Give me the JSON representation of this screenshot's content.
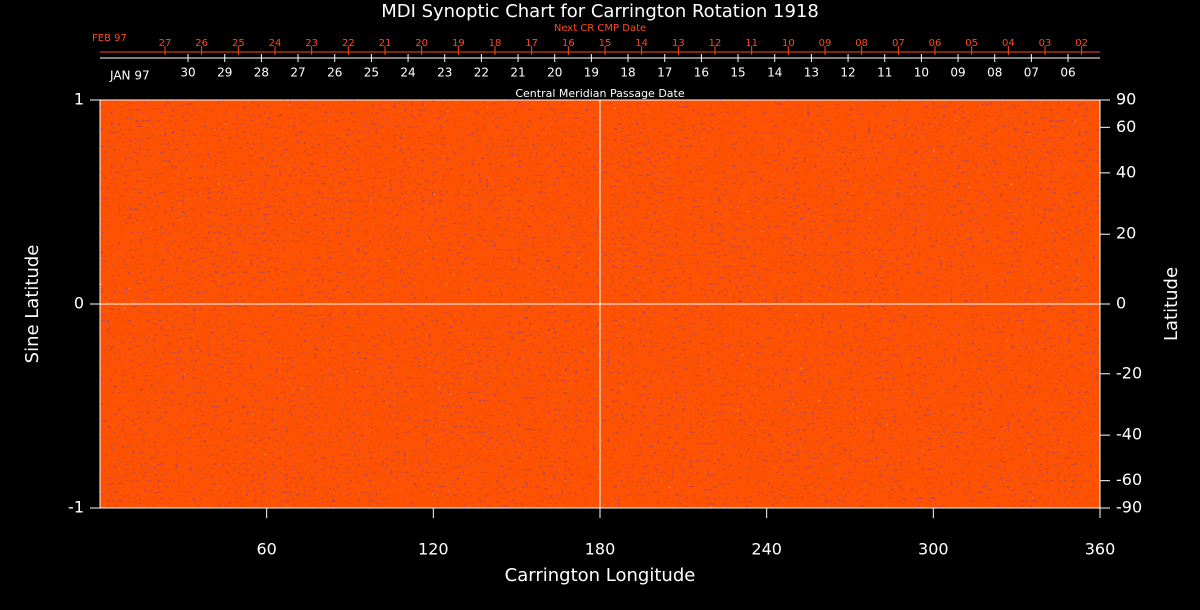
{
  "chart_data": {
    "type": "image",
    "title": "MDI Synoptic Chart for Carrington Rotation 1918",
    "xlabel": "Carrington Longitude",
    "ylabel": "Sine Latitude",
    "y2label": "Latitude",
    "xlim": [
      0,
      360
    ],
    "xticks": [
      60,
      120,
      180,
      240,
      300,
      360
    ],
    "ylim": [
      -1,
      1
    ],
    "yticks": [
      -1,
      0,
      1
    ],
    "y2lim": [
      -90,
      90
    ],
    "y2scale": "sine",
    "y2ticks": [
      90,
      60,
      40,
      20,
      0,
      -20,
      -40,
      -60,
      -90
    ],
    "grid_lines": {
      "x": [
        180
      ],
      "y": [
        0
      ]
    },
    "cmp_axis": {
      "label": "Central Meridian Passage Date",
      "start_label": "JAN 97",
      "labels": [
        "30",
        "29",
        "28",
        "27",
        "26",
        "25",
        "24",
        "23",
        "22",
        "21",
        "20",
        "19",
        "18",
        "17",
        "16",
        "15",
        "14",
        "13",
        "12",
        "11",
        "10",
        "09",
        "08",
        "07",
        "06"
      ],
      "values": [
        31.7,
        44.9,
        58.1,
        71.3,
        84.5,
        97.7,
        110.9,
        124.1,
        137.3,
        150.5,
        163.7,
        176.9,
        190.1,
        203.3,
        216.5,
        229.7,
        242.9,
        256.1,
        269.3,
        282.5,
        295.7,
        308.9,
        322.1,
        335.3,
        348.5
      ]
    },
    "next_cmp_axis": {
      "label": "Next CR CMP Date",
      "start_label": "FEB 97",
      "color": "#ff4a1a",
      "labels": [
        "27",
        "26",
        "25",
        "24",
        "23",
        "22",
        "21",
        "20",
        "19",
        "18",
        "17",
        "16",
        "15",
        "14",
        "13",
        "12",
        "11",
        "10",
        "09",
        "08",
        "07",
        "06",
        "05",
        "04",
        "03",
        "02"
      ],
      "values": [
        23.4,
        36.6,
        49.8,
        63.0,
        76.2,
        89.4,
        102.6,
        115.8,
        129.0,
        142.2,
        155.4,
        168.6,
        181.8,
        195.0,
        208.2,
        221.4,
        234.6,
        247.8,
        261.0,
        274.2,
        287.4,
        300.6,
        313.8,
        327.0,
        340.2,
        353.4
      ]
    }
  }
}
